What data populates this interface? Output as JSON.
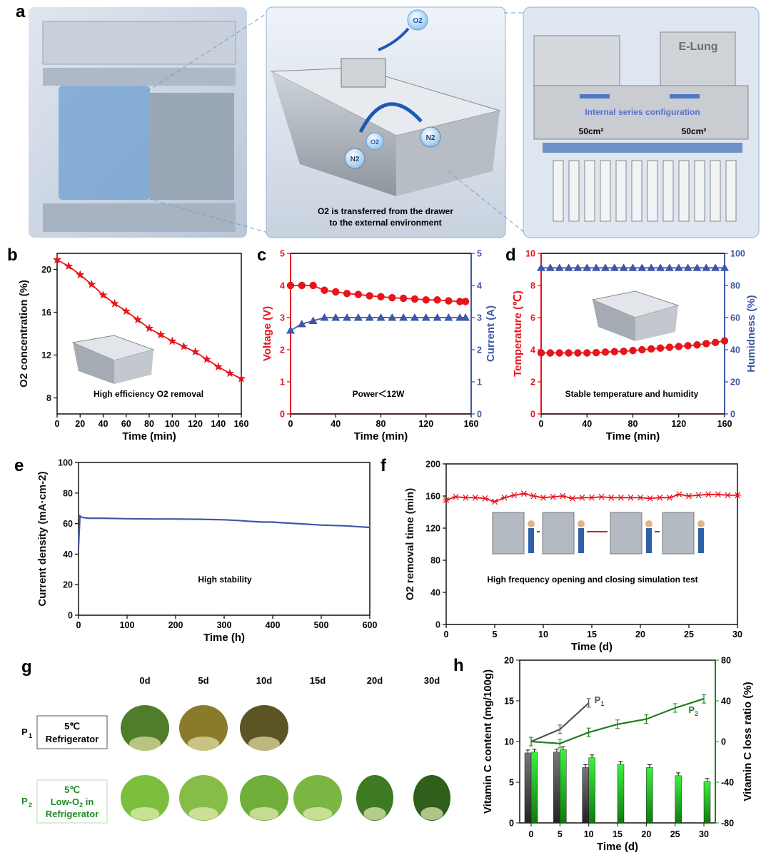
{
  "panel_letters": [
    "a",
    "b",
    "c",
    "d",
    "e",
    "f",
    "g",
    "h"
  ],
  "panel_a": {
    "o2_label": "O2",
    "n2_label": "N2",
    "drawer_caption_line1": "O2 is transferred from the drawer",
    "drawer_caption_line2": "to the external environment",
    "brand": "E-Lung",
    "config_label": "Internal series configuration",
    "area_left": "50cm²",
    "area_right": "50cm²"
  },
  "chart_data": [
    {
      "id": "b",
      "type": "line",
      "xlabel": "Time (min)",
      "ylabel": "O2 concentration (%)",
      "xlim": [
        0,
        160
      ],
      "ylim": [
        6.5,
        21.5
      ],
      "xticks": [
        "0",
        "20",
        "40",
        "60",
        "80",
        "100",
        "120",
        "140",
        "160"
      ],
      "yticks": [
        "8",
        "12",
        "16",
        "20"
      ],
      "annotation": "High efficiency O2 removal",
      "series": [
        {
          "color": "#e8141c",
          "marker": "star",
          "x": [
            0,
            10,
            20,
            30,
            40,
            50,
            60,
            70,
            80,
            90,
            100,
            110,
            120,
            130,
            140,
            150,
            160
          ],
          "y": [
            20.9,
            20.3,
            19.5,
            18.6,
            17.6,
            16.8,
            16.1,
            15.3,
            14.5,
            13.9,
            13.3,
            12.8,
            12.3,
            11.6,
            10.9,
            10.3,
            9.8
          ]
        }
      ]
    },
    {
      "id": "c",
      "type": "line",
      "xlabel": "Time (min)",
      "ylabel": "Voltage (V)",
      "y2label": "Current (A)",
      "xlim": [
        0,
        160
      ],
      "ylim": [
        0,
        5
      ],
      "y2lim": [
        0,
        5
      ],
      "xticks": [
        "0",
        "40",
        "80",
        "120",
        "160"
      ],
      "yticks": [
        "0",
        "1",
        "2",
        "3",
        "4",
        "5"
      ],
      "annotation": "Power＜12W",
      "series": [
        {
          "color": "#e8141c",
          "marker": "circle",
          "axis": "left",
          "x": [
            0,
            10,
            20,
            30,
            40,
            50,
            60,
            70,
            80,
            90,
            100,
            110,
            120,
            130,
            140,
            150,
            155
          ],
          "y": [
            4.0,
            4.0,
            4.0,
            3.85,
            3.8,
            3.75,
            3.72,
            3.68,
            3.65,
            3.62,
            3.6,
            3.58,
            3.55,
            3.55,
            3.52,
            3.5,
            3.5
          ]
        },
        {
          "color": "#3f57a7",
          "marker": "triangle",
          "axis": "right",
          "x": [
            0,
            10,
            20,
            30,
            40,
            50,
            60,
            70,
            80,
            90,
            100,
            110,
            120,
            130,
            140,
            150,
            155
          ],
          "y": [
            2.6,
            2.8,
            2.9,
            3.0,
            3.0,
            3.0,
            3.0,
            3.0,
            3.0,
            3.0,
            3.0,
            3.0,
            3.0,
            3.0,
            3.0,
            3.0,
            3.0
          ]
        }
      ]
    },
    {
      "id": "d",
      "type": "line",
      "xlabel": "Time (min)",
      "ylabel": "Temperature (℃)",
      "y2label": "Humidness (%)",
      "xlim": [
        0,
        160
      ],
      "ylim": [
        0,
        10
      ],
      "y2lim": [
        0,
        100
      ],
      "xticks": [
        "0",
        "40",
        "80",
        "120",
        "160"
      ],
      "yticks": [
        "0",
        "2",
        "4",
        "6",
        "8",
        "10"
      ],
      "y2ticks": [
        "0",
        "20",
        "40",
        "60",
        "80",
        "100"
      ],
      "annotation": "Stable temperature and humidity",
      "series": [
        {
          "color": "#e8141c",
          "marker": "circle",
          "axis": "left",
          "x": [
            0,
            8,
            16,
            24,
            32,
            40,
            48,
            56,
            64,
            72,
            80,
            88,
            96,
            104,
            112,
            120,
            128,
            136,
            144,
            152,
            160
          ],
          "y": [
            3.8,
            3.8,
            3.8,
            3.8,
            3.8,
            3.8,
            3.82,
            3.85,
            3.88,
            3.9,
            3.95,
            4.0,
            4.05,
            4.1,
            4.15,
            4.2,
            4.25,
            4.3,
            4.38,
            4.45,
            4.55
          ]
        },
        {
          "color": "#3f57a7",
          "marker": "triangle",
          "axis": "right",
          "x": [
            0,
            8,
            16,
            24,
            32,
            40,
            48,
            56,
            64,
            72,
            80,
            88,
            96,
            104,
            112,
            120,
            128,
            136,
            144,
            152,
            160
          ],
          "y": [
            91,
            91,
            91,
            91,
            91,
            91,
            91,
            91,
            91,
            91,
            91,
            91,
            91,
            91,
            91,
            91,
            91,
            91,
            91,
            91,
            91
          ]
        }
      ]
    },
    {
      "id": "e",
      "type": "line",
      "xlabel": "Time (h)",
      "ylabel": "Current density (mA·cm-2)",
      "xlim": [
        0,
        600
      ],
      "ylim": [
        0,
        100
      ],
      "xticks": [
        "0",
        "100",
        "200",
        "300",
        "400",
        "500",
        "600"
      ],
      "yticks": [
        "0",
        "20",
        "40",
        "60",
        "80",
        "100"
      ],
      "annotation": "High stability",
      "series": [
        {
          "color": "#3f57a7",
          "x": [
            0,
            3,
            8,
            20,
            50,
            100,
            150,
            200,
            250,
            300,
            330,
            350,
            380,
            400,
            420,
            450,
            500,
            550,
            600
          ],
          "y": [
            45,
            65,
            64,
            63.5,
            63.5,
            63.2,
            63,
            63,
            62.8,
            62.5,
            62,
            61.5,
            61,
            61,
            60.5,
            60,
            59,
            58.5,
            57.5
          ]
        }
      ]
    },
    {
      "id": "f",
      "type": "line",
      "xlabel": "Time (d)",
      "ylabel": "O2 removal time (min)",
      "xlim": [
        0,
        30
      ],
      "ylim": [
        0,
        200
      ],
      "xticks": [
        "0",
        "5",
        "10",
        "15",
        "20",
        "25",
        "30"
      ],
      "yticks": [
        "0",
        "40",
        "80",
        "120",
        "160",
        "200"
      ],
      "annotation": "High frequency opening and closing simulation test",
      "series": [
        {
          "color": "#e8141c",
          "marker": "asterisk",
          "x": [
            0,
            1,
            2,
            3,
            4,
            5,
            6,
            7,
            8,
            9,
            10,
            11,
            12,
            13,
            14,
            15,
            16,
            17,
            18,
            19,
            20,
            21,
            22,
            23,
            24,
            25,
            26,
            27,
            28,
            29,
            30
          ],
          "y": [
            155,
            159,
            158,
            158,
            157,
            153,
            158,
            161,
            163,
            160,
            158,
            159,
            160,
            157,
            158,
            158,
            159,
            158,
            158,
            158,
            158,
            157,
            158,
            158,
            162,
            160,
            161,
            162,
            162,
            161,
            161
          ]
        }
      ]
    },
    {
      "id": "h",
      "type": "bar",
      "xlabel": "Time (d)",
      "ylabel": "Vitamin C content (mg/100g)",
      "y2label": "Vitamin C loss ratio (%)",
      "categories": [
        "0",
        "5",
        "10",
        "15",
        "20",
        "25",
        "30"
      ],
      "ylim": [
        0,
        20
      ],
      "y2lim": [
        -80,
        80
      ],
      "yticks": [
        "0",
        "5",
        "10",
        "15",
        "20"
      ],
      "y2ticks": [
        "-80",
        "-40",
        "0",
        "40",
        "80"
      ],
      "series": [
        {
          "name": "P1",
          "color": "#555555",
          "values": [
            8.6,
            8.7,
            6.8,
            null,
            null,
            null,
            null
          ]
        },
        {
          "name": "P2",
          "color": "#2ecc2e",
          "values": [
            8.7,
            9.0,
            8.0,
            7.2,
            6.8,
            5.8,
            5.1
          ]
        }
      ],
      "loss_ratio": [
        {
          "name": "P1",
          "color": "#555555",
          "x": [
            0,
            5,
            10
          ],
          "y": [
            0,
            12,
            38
          ]
        },
        {
          "name": "P2",
          "color": "#1e7f1e",
          "x": [
            0,
            5,
            10,
            15,
            20,
            25,
            30
          ],
          "y": [
            0,
            -2,
            9,
            17,
            22,
            33,
            42
          ]
        }
      ]
    }
  ],
  "panel_g": {
    "days": [
      "0d",
      "5d",
      "10d",
      "15d",
      "20d",
      "30d"
    ],
    "rows": [
      {
        "sub": "P",
        "subidx": "1",
        "temp": "5℃",
        "label": "Refrigerator",
        "color": "#222222"
      },
      {
        "sub": "P",
        "subidx": "2",
        "temp": "5℃",
        "label_line1": "Low-O",
        "label_line1_sub": "2",
        "label_line1_tail": " in",
        "label_line2": "Refrigerator",
        "color": "#1e8a1e"
      }
    ]
  }
}
